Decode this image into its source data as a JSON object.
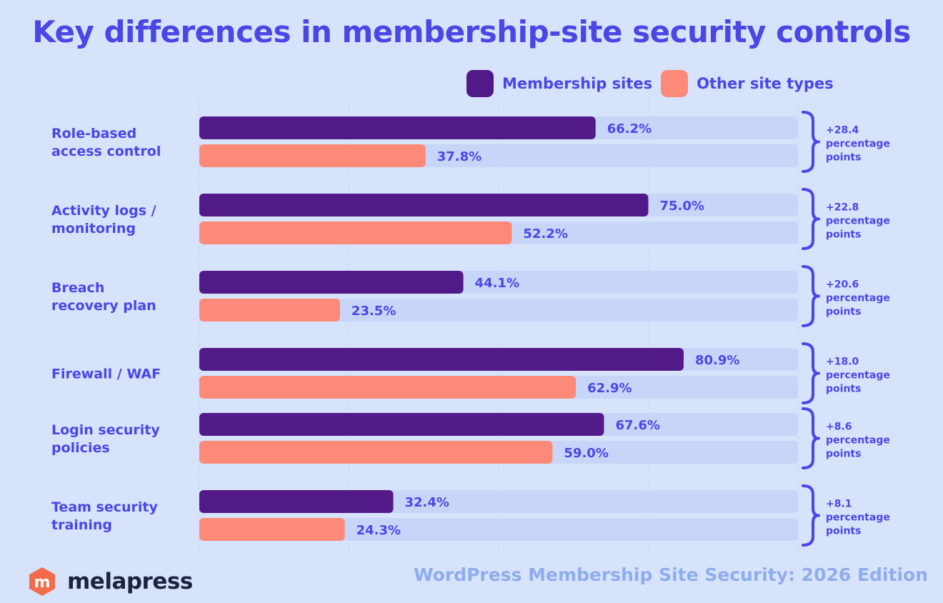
{
  "title": "Key differences in membership-site security controls",
  "legend": {
    "membership_label": "Membership sites",
    "other_label": "Other site types"
  },
  "colors": {
    "membership": "#521a88",
    "other": "#fd8a78",
    "track": "#c7d6f8",
    "accent": "#4b46e6",
    "background": "#d7e3fb"
  },
  "chart_data": {
    "type": "bar",
    "orientation": "horizontal",
    "xlim": [
      0,
      100
    ],
    "unit": "%",
    "grid": true,
    "legend_position": "top-right",
    "categories": [
      [
        "Role-based",
        "access control"
      ],
      [
        "Activity logs /",
        "monitoring"
      ],
      [
        "Breach",
        "recovery plan"
      ],
      [
        "Firewall / WAF"
      ],
      [
        "Login security",
        "policies"
      ],
      [
        "Team security",
        "training"
      ]
    ],
    "series": [
      {
        "name": "Membership sites",
        "values": [
          66.2,
          75.0,
          44.1,
          80.9,
          67.6,
          32.4
        ]
      },
      {
        "name": "Other site types",
        "values": [
          37.8,
          52.2,
          23.5,
          62.9,
          59.0,
          24.3
        ]
      }
    ],
    "value_labels": {
      "membership": [
        "66.2%",
        "75.0%",
        "44.1%",
        "80.9%",
        "67.6%",
        "32.4%"
      ],
      "other": [
        "37.8%",
        "52.2%",
        "23.5%",
        "62.9%",
        "59.0%",
        "24.3%"
      ]
    },
    "differences": [
      [
        "+28.4",
        "percentage",
        "points"
      ],
      [
        "+22.8",
        "percentage",
        "points"
      ],
      [
        "+20.6",
        "percentage",
        "points"
      ],
      [
        "+18.0",
        "percentage",
        "points"
      ],
      [
        "+8.6",
        "percentage",
        "points"
      ],
      [
        "+8.1",
        "percentage",
        "points"
      ]
    ]
  },
  "footer": {
    "logo_letter": "m",
    "logo_text": "melapress",
    "source": "WordPress Membership Site Security: 2026 Edition"
  }
}
